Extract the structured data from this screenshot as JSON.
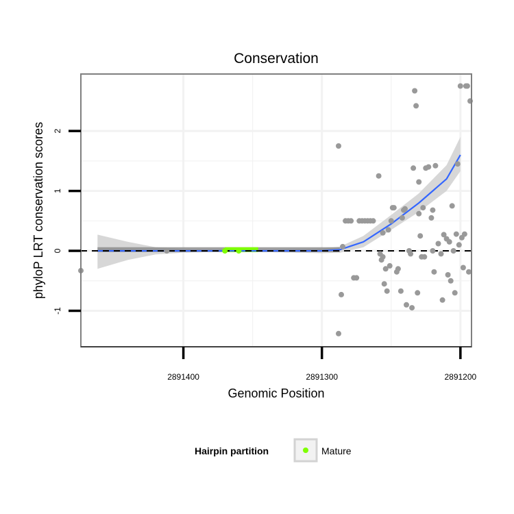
{
  "chart_data": {
    "type": "scatter",
    "title": "Conservation",
    "xlabel": "Genomic Position",
    "ylabel": "phyloP LRT conservation scores",
    "x_reversed": true,
    "xlim": [
      2891474,
      2891192
    ],
    "ylim": [
      -1.6,
      2.95
    ],
    "x_ticks": [
      2891400,
      2891300,
      2891200
    ],
    "x_tick_labels": [
      "2891400",
      "2891300",
      "2891200"
    ],
    "y_ticks": [
      -1,
      0,
      1,
      2
    ],
    "y_tick_labels": [
      "-1",
      "0",
      "1",
      "2"
    ],
    "grid": true,
    "reference_line": {
      "y": 0,
      "style": "dashed",
      "color": "#000000"
    },
    "colors": {
      "points": "#999999",
      "mature": "#7fff00",
      "smooth": "#3366ff",
      "ribbon": "#d3d3d3",
      "hairpin_bar": "#888888",
      "panel_border": "#7f7f7f",
      "grid": "#f2f2f2"
    },
    "hairpin_segment": {
      "x_start": 2891462,
      "x_end": 2891287,
      "y": 0.02
    },
    "mature_segment": {
      "x_start": 2891370,
      "x_end": 2891346,
      "y": 0.02
    },
    "smooth": {
      "x": [
        2891462,
        2891440,
        2891420,
        2891400,
        2891380,
        2891360,
        2891340,
        2891320,
        2891300,
        2891287,
        2891270,
        2891250,
        2891230,
        2891210,
        2891200
      ],
      "y": [
        0.0,
        0.0,
        0.0,
        0.0,
        0.0,
        0.0,
        0.0,
        0.0,
        0.0,
        0.02,
        0.15,
        0.45,
        0.8,
        1.2,
        1.6
      ],
      "lower": [
        -0.3,
        -0.15,
        -0.06,
        -0.03,
        -0.02,
        -0.02,
        -0.02,
        -0.03,
        -0.04,
        -0.03,
        0.06,
        0.35,
        0.65,
        1.0,
        1.33
      ],
      "upper": [
        0.27,
        0.15,
        0.06,
        0.03,
        0.02,
        0.02,
        0.02,
        0.03,
        0.04,
        0.07,
        0.25,
        0.6,
        0.96,
        1.43,
        1.9
      ]
    },
    "points": {
      "x": [
        2891474,
        2891412,
        2891370,
        2891360,
        2891288,
        2891286,
        2891288,
        2891285,
        2891283,
        2891281,
        2891279,
        2891277,
        2891275,
        2891273,
        2891271,
        2891269,
        2891267,
        2891265,
        2891263,
        2891259,
        2891258,
        2891256,
        2891256,
        2891254,
        2891252,
        2891250,
        2891249,
        2891248,
        2891246,
        2891243,
        2891242,
        2891241,
        2891240,
        2891237,
        2891236,
        2891235,
        2891234,
        2891233,
        2891232,
        2891230,
        2891230,
        2891229,
        2891228,
        2891227,
        2891225,
        2891223,
        2891221,
        2891220,
        2891220,
        2891218,
        2891216,
        2891214,
        2891212,
        2891210,
        2891208,
        2891207,
        2891205,
        2891203,
        2891202,
        2891200,
        2891198,
        2891197,
        2891196,
        2891195,
        2891193,
        2891257,
        2891255,
        2891253,
        2891251,
        2891245,
        2891239,
        2891231,
        2891226,
        2891219,
        2891213,
        2891209,
        2891206,
        2891204,
        2891201,
        2891199,
        2891194
      ],
      "y": [
        -0.33,
        0.0,
        0.0,
        0.0,
        1.75,
        -0.73,
        -1.38,
        0.07,
        0.5,
        0.5,
        0.5,
        -0.45,
        -0.45,
        0.5,
        0.5,
        0.5,
        0.5,
        0.5,
        0.5,
        1.25,
        -0.05,
        -0.1,
        0.3,
        -0.3,
        0.35,
        0.5,
        0.72,
        0.72,
        -0.35,
        -0.67,
        0.55,
        0.68,
        0.7,
        0.0,
        -0.05,
        -0.95,
        1.38,
        2.67,
        2.42,
        0.62,
        1.15,
        0.25,
        -0.1,
        0.72,
        1.38,
        1.4,
        0.55,
        0.68,
        0.0,
        1.42,
        0.12,
        -0.05,
        0.27,
        0.2,
        0.15,
        -0.5,
        0.0,
        0.28,
        1.45,
        2.75,
        -0.28,
        0.28,
        2.75,
        2.75,
        2.5,
        -0.15,
        -0.55,
        -0.67,
        -0.25,
        -0.3,
        -0.9,
        -0.7,
        -0.1,
        -0.35,
        -0.82,
        -0.4,
        0.75,
        -0.7,
        0.1,
        0.22,
        -0.35
      ]
    },
    "legend": {
      "title": "Hairpin partition",
      "entries": [
        "Mature"
      ],
      "position": "bottom"
    }
  }
}
